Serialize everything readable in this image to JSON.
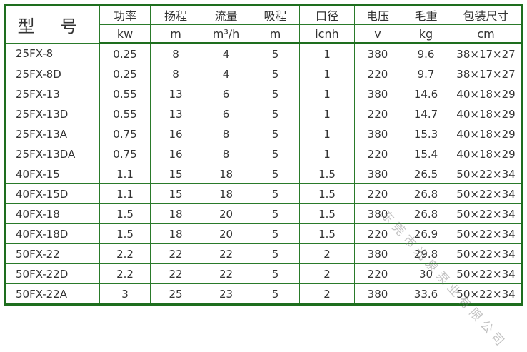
{
  "headers": {
    "model": "型 号",
    "cols": [
      "功率",
      "扬程",
      "流量",
      "吸程",
      "口径",
      "电压",
      "毛重",
      "包装尺寸"
    ],
    "units": [
      "kw",
      "m",
      "m³/h",
      "m",
      "icnh",
      "v",
      "kg",
      "cm"
    ]
  },
  "rows": [
    [
      "25FX-8",
      "0.25",
      "8",
      "4",
      "5",
      "1",
      "380",
      "9.6",
      "38×17×27"
    ],
    [
      "25FX-8D",
      "0.25",
      "8",
      "4",
      "5",
      "1",
      "220",
      "9.7",
      "38×17×27"
    ],
    [
      "25FX-13",
      "0.55",
      "13",
      "6",
      "5",
      "1",
      "380",
      "14.6",
      "40×18×29"
    ],
    [
      "25FX-13D",
      "0.55",
      "13",
      "6",
      "5",
      "1",
      "220",
      "14.7",
      "40×18×29"
    ],
    [
      "25FX-13A",
      "0.75",
      "16",
      "8",
      "5",
      "1",
      "380",
      "15.3",
      "40×18×29"
    ],
    [
      "25FX-13DA",
      "0.75",
      "16",
      "8",
      "5",
      "1",
      "220",
      "15.4",
      "40×18×29"
    ],
    [
      "40FX-15",
      "1.1",
      "15",
      "18",
      "5",
      "1.5",
      "380",
      "26.5",
      "50×22×34"
    ],
    [
      "40FX-15D",
      "1.1",
      "15",
      "18",
      "5",
      "1.5",
      "220",
      "26.8",
      "50×22×34"
    ],
    [
      "40FX-18",
      "1.5",
      "18",
      "20",
      "5",
      "1.5",
      "380",
      "26.8",
      "50×22×34"
    ],
    [
      "40FX-18D",
      "1.5",
      "18",
      "20",
      "5",
      "1.5",
      "220",
      "26.9",
      "50×22×34"
    ],
    [
      "50FX-22",
      "2.2",
      "22",
      "22",
      "5",
      "2",
      "380",
      "29.8",
      "50×22×34"
    ],
    [
      "50FX-22D",
      "2.2",
      "22",
      "22",
      "5",
      "2",
      "220",
      "30",
      "50×22×34"
    ],
    [
      "50FX-22A",
      "3",
      "25",
      "23",
      "5",
      "2",
      "380",
      "33.6",
      "50×22×34"
    ]
  ],
  "watermark": "东莞市光泉泵业有限公司"
}
